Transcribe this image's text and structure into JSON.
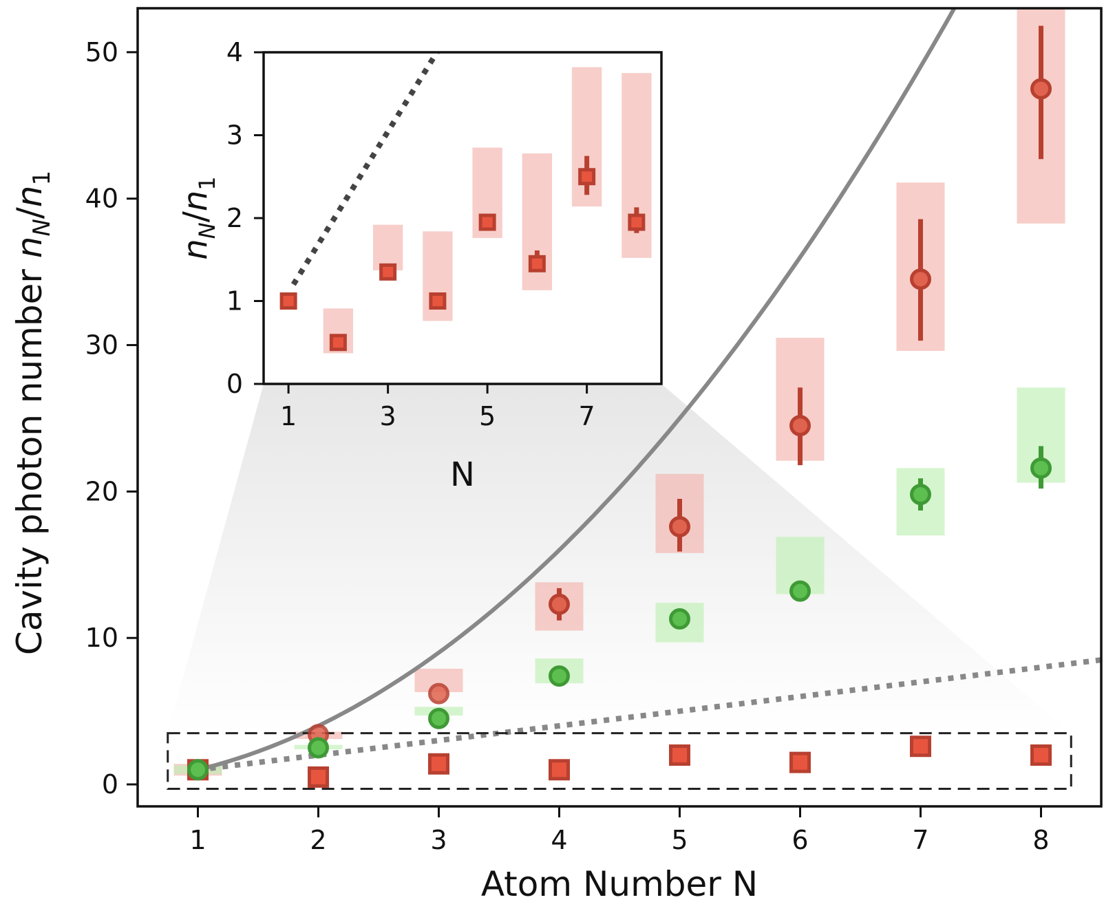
{
  "chart_data": [
    {
      "type": "scatter",
      "panel": "main",
      "xlabel": "Atom Number N",
      "ylabel": {
        "prefix": "Cavity photon number ",
        "num": "n",
        "num_sub": "N",
        "sep": "/",
        "den": "n",
        "den_sub": "1"
      },
      "xlim": [
        0.5,
        8.5
      ],
      "ylim": [
        -1.5,
        53
      ],
      "xticks": [
        "1",
        "2",
        "3",
        "4",
        "5",
        "6",
        "7",
        "8"
      ],
      "yticks": [
        "0",
        "10",
        "20",
        "30",
        "40",
        "50"
      ],
      "grid": false,
      "colors": {
        "red": "#d9493a",
        "red_band": "#f2b4ae",
        "green": "#5cbf50",
        "green_band": "#bff0b4",
        "curve": "#888888"
      },
      "series": [
        {
          "marker": "circle",
          "color": "red",
          "points": [
            {
              "x": 1,
              "y": 1.0,
              "band": [
                0.6,
                1.4
              ],
              "err": [
                1.0,
                1.0
              ]
            },
            {
              "x": 2,
              "y": 3.4,
              "band": [
                3.1,
                3.6
              ],
              "err": [
                3.4,
                3.4
              ]
            },
            {
              "x": 3,
              "y": 6.2,
              "band": [
                6.3,
                7.9
              ],
              "err": [
                6.2,
                6.2
              ]
            },
            {
              "x": 4,
              "y": 12.3,
              "band": [
                10.5,
                13.8
              ],
              "err": [
                11.2,
                13.4
              ]
            },
            {
              "x": 5,
              "y": 17.6,
              "band": [
                15.8,
                21.2
              ],
              "err": [
                15.9,
                19.5
              ]
            },
            {
              "x": 6,
              "y": 24.5,
              "band": [
                22.1,
                30.5
              ],
              "err": [
                21.8,
                27.1
              ]
            },
            {
              "x": 7,
              "y": 34.5,
              "band": [
                29.6,
                41.1
              ],
              "err": [
                30.3,
                38.6
              ]
            },
            {
              "x": 8,
              "y": 47.5,
              "band": [
                38.3,
                53.0
              ],
              "err": [
                42.7,
                51.8
              ]
            }
          ]
        },
        {
          "marker": "circle",
          "color": "green",
          "points": [
            {
              "x": 1,
              "y": 1.0,
              "band": [
                0.7,
                1.3
              ],
              "err": [
                1.0,
                1.0
              ]
            },
            {
              "x": 2,
              "y": 2.5,
              "band": [
                2.4,
                2.7
              ],
              "err": [
                2.5,
                2.5
              ]
            },
            {
              "x": 3,
              "y": 4.5,
              "band": [
                4.7,
                5.3
              ],
              "err": [
                4.5,
                4.5
              ]
            },
            {
              "x": 4,
              "y": 7.4,
              "band": [
                6.9,
                8.6
              ],
              "err": [
                7.4,
                7.4
              ]
            },
            {
              "x": 5,
              "y": 11.3,
              "band": [
                9.7,
                12.4
              ],
              "err": [
                11.3,
                11.3
              ]
            },
            {
              "x": 6,
              "y": 13.2,
              "band": [
                13.0,
                16.9
              ],
              "err": [
                13.2,
                13.2
              ]
            },
            {
              "x": 7,
              "y": 19.8,
              "band": [
                17.0,
                21.6
              ],
              "err": [
                18.7,
                20.9
              ]
            },
            {
              "x": 8,
              "y": 21.6,
              "band": [
                20.6,
                27.1
              ],
              "err": [
                20.2,
                23.1
              ]
            }
          ]
        },
        {
          "marker": "square",
          "color": "red",
          "points": [
            {
              "x": 1,
              "y": 1.0
            },
            {
              "x": 2,
              "y": 0.5
            },
            {
              "x": 3,
              "y": 1.4
            },
            {
              "x": 4,
              "y": 1.0
            },
            {
              "x": 5,
              "y": 2.0
            },
            {
              "x": 6,
              "y": 1.5
            },
            {
              "x": 7,
              "y": 2.6
            },
            {
              "x": 8,
              "y": 2.0
            }
          ]
        }
      ],
      "curves": [
        {
          "style": "solid",
          "color": "curve",
          "formula": "N^2 exponential",
          "x_range": [
            1,
            8
          ]
        },
        {
          "style": "dotted",
          "color": "curve",
          "formula": "linear N",
          "x_range": [
            1,
            8.5
          ]
        }
      ],
      "zoom_box": {
        "x": [
          0.75,
          8.25
        ],
        "y": [
          -0.3,
          3.5
        ]
      }
    },
    {
      "type": "scatter",
      "panel": "inset",
      "xlabel": "N",
      "ylabel": {
        "num": "n",
        "num_sub": "N",
        "sep": "/",
        "den": "n",
        "den_sub": "1"
      },
      "xlim": [
        0.5,
        8.5
      ],
      "ylim": [
        0,
        4
      ],
      "xticks": [
        "1",
        "3",
        "5",
        "7"
      ],
      "yticks": [
        "0",
        "1",
        "2",
        "3",
        "4"
      ],
      "series": [
        {
          "marker": "square",
          "color": "red",
          "points": [
            {
              "x": 1,
              "y": 1.0,
              "band": [
                1.0,
                1.0
              ],
              "err": [
                1.0,
                1.0
              ]
            },
            {
              "x": 2,
              "y": 0.5,
              "band": [
                0.37,
                0.91
              ],
              "err": [
                0.5,
                0.5
              ]
            },
            {
              "x": 3,
              "y": 1.35,
              "band": [
                1.37,
                1.92
              ],
              "err": [
                1.31,
                1.39
              ]
            },
            {
              "x": 4,
              "y": 1.0,
              "band": [
                0.76,
                1.84
              ],
              "err": [
                1.0,
                1.0
              ]
            },
            {
              "x": 5,
              "y": 1.95,
              "band": [
                1.76,
                2.85
              ],
              "err": [
                1.88,
                2.02
              ]
            },
            {
              "x": 6,
              "y": 1.45,
              "band": [
                1.13,
                2.78
              ],
              "err": [
                1.37,
                1.61
              ]
            },
            {
              "x": 7,
              "y": 2.5,
              "band": [
                2.14,
                3.82
              ],
              "err": [
                2.28,
                2.75
              ]
            },
            {
              "x": 8,
              "y": 1.95,
              "band": [
                1.52,
                3.75
              ],
              "err": [
                1.82,
                2.13
              ]
            }
          ]
        }
      ],
      "curves": [
        {
          "style": "dotted",
          "color": "dark",
          "formula": "linear N",
          "x_range": [
            1,
            4.5
          ]
        }
      ]
    }
  ]
}
